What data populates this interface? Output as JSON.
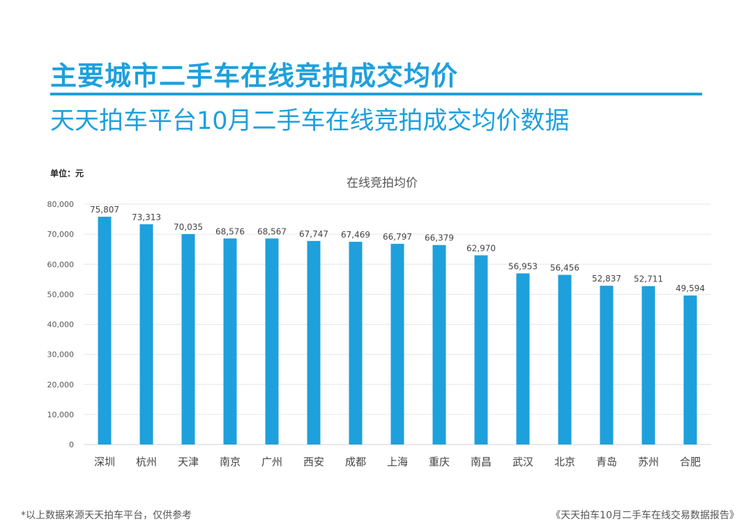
{
  "header": {
    "title": "主要城市二手车在线竞拍成交均价",
    "subtitle": "天天拍车平台10月二手车在线竞拍成交均价数据"
  },
  "unit_label": "单位：元",
  "footer": {
    "note": "*以上数据来源天天拍车平台，仅供参考",
    "source": "《天天拍车10月二手车在线交易数据报告》"
  },
  "colors": {
    "accent": "#1ea0dc",
    "bar": "#1ea0dc"
  },
  "chart_data": {
    "type": "bar",
    "title": "在线竞拍均价",
    "xlabel": "",
    "ylabel": "",
    "ylim": [
      0,
      80000
    ],
    "yticks": [
      0,
      10000,
      20000,
      30000,
      40000,
      50000,
      60000,
      70000,
      80000
    ],
    "ytick_labels": [
      "0",
      "10,000",
      "20,000",
      "30,000",
      "40,000",
      "50,000",
      "60,000",
      "70,000",
      "80,000"
    ],
    "grid": true,
    "categories": [
      "深圳",
      "杭州",
      "天津",
      "南京",
      "广州",
      "西安",
      "成都",
      "上海",
      "重庆",
      "南昌",
      "武汉",
      "北京",
      "青岛",
      "苏州",
      "合肥"
    ],
    "values": [
      75807,
      73313,
      70035,
      68576,
      68567,
      67747,
      67469,
      66797,
      66379,
      62970,
      56953,
      56456,
      52837,
      52711,
      49594
    ],
    "value_labels": [
      "75,807",
      "73,313",
      "70,035",
      "68,576",
      "68,567",
      "67,747",
      "67,469",
      "66,797",
      "66,379",
      "62,970",
      "56,953",
      "56,456",
      "52,837",
      "52,711",
      "49,594"
    ]
  }
}
